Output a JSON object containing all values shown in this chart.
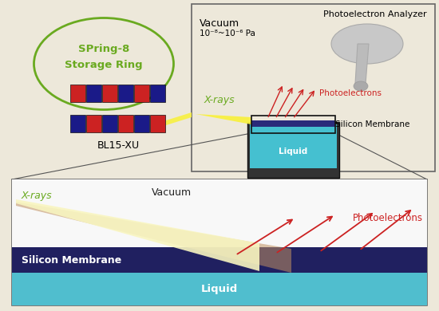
{
  "bg_color": "#ede8da",
  "green_color": "#6aaa20",
  "red_color": "#cc2222",
  "dark_navy": "#1e1e5a",
  "cyan_liquid": "#45c0d0",
  "cyan_liquid2": "#60c8d8",
  "yellow_xray": "#f8f060",
  "gray_light": "#d8d8d8",
  "label_vacuum": "Vacuum",
  "label_pressure": "10⁻⁸~10⁻⁶ Pa",
  "label_analyzer": "Photoelectron Analyzer",
  "label_xrays_top": "X-rays",
  "label_photoelectrons_top": "Photoelectrons",
  "label_silicon_top": "Silicon Membrane",
  "label_liquid_top": "Liquid",
  "label_spring8": "SPring-8",
  "label_storage": "Storage Ring",
  "label_bl": "BL15-XU",
  "label_xrays_bot": "X-rays",
  "label_vacuum_bot": "Vacuum",
  "label_photoelectrons_bot": "Photoelectrons",
  "label_silicon_bot": "Silicon Membrane",
  "label_liquid_bot": "Liquid"
}
